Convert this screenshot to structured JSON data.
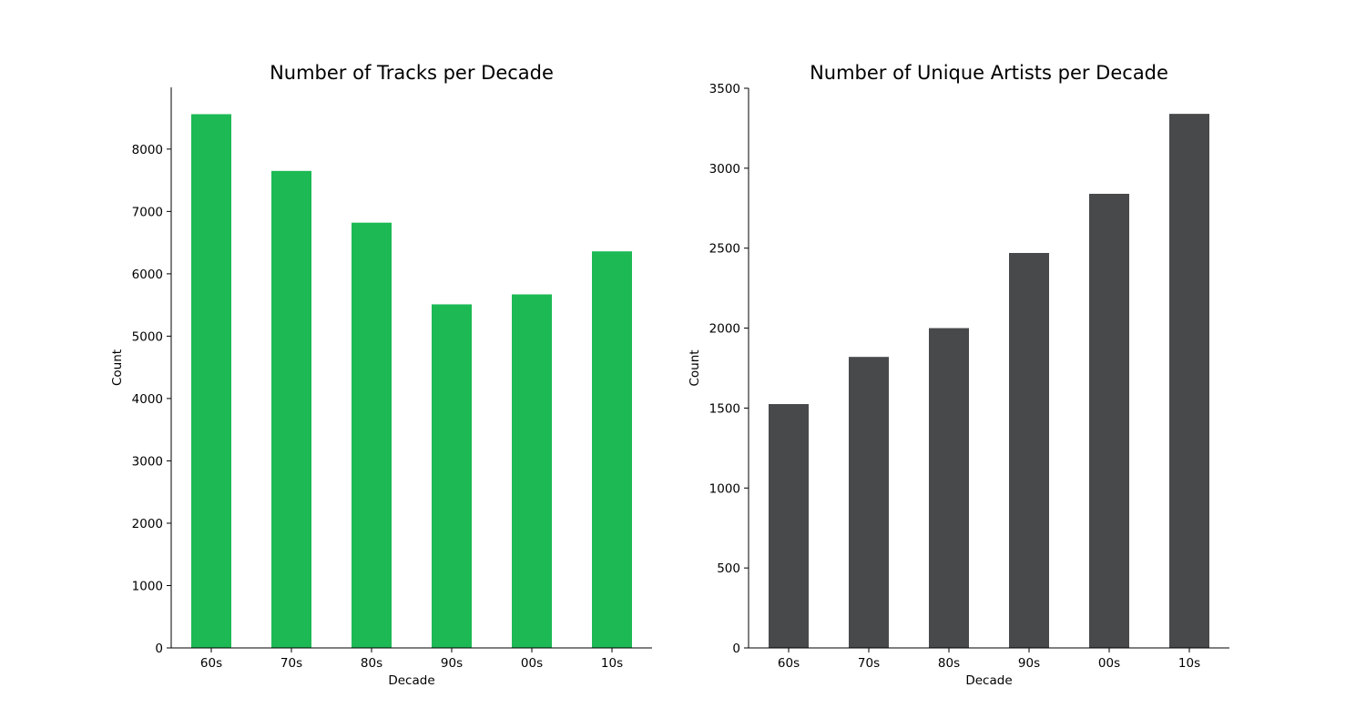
{
  "chart_data": [
    {
      "type": "bar",
      "title": "Number of Tracks per Decade",
      "xlabel": "Decade",
      "ylabel": "Count",
      "categories": [
        "60s",
        "70s",
        "80s",
        "90s",
        "00s",
        "10s"
      ],
      "values": [
        8560,
        7650,
        6820,
        5510,
        5670,
        6360
      ],
      "ylim": [
        0,
        8990
      ],
      "yticks": [
        0,
        1000,
        2000,
        3000,
        4000,
        5000,
        6000,
        7000,
        8000
      ],
      "color": "#1DB954",
      "grid": false,
      "legend": "none"
    },
    {
      "type": "bar",
      "title": "Number of Unique Artists per Decade",
      "xlabel": "Decade",
      "ylabel": "Count",
      "categories": [
        "60s",
        "70s",
        "80s",
        "90s",
        "00s",
        "10s"
      ],
      "values": [
        1525,
        1820,
        2000,
        2470,
        2840,
        3340
      ],
      "ylim": [
        0,
        3500
      ],
      "yticks": [
        0,
        500,
        1000,
        1500,
        2000,
        2500,
        3000,
        3500
      ],
      "color": "#48494B",
      "grid": false,
      "legend": "none"
    }
  ]
}
